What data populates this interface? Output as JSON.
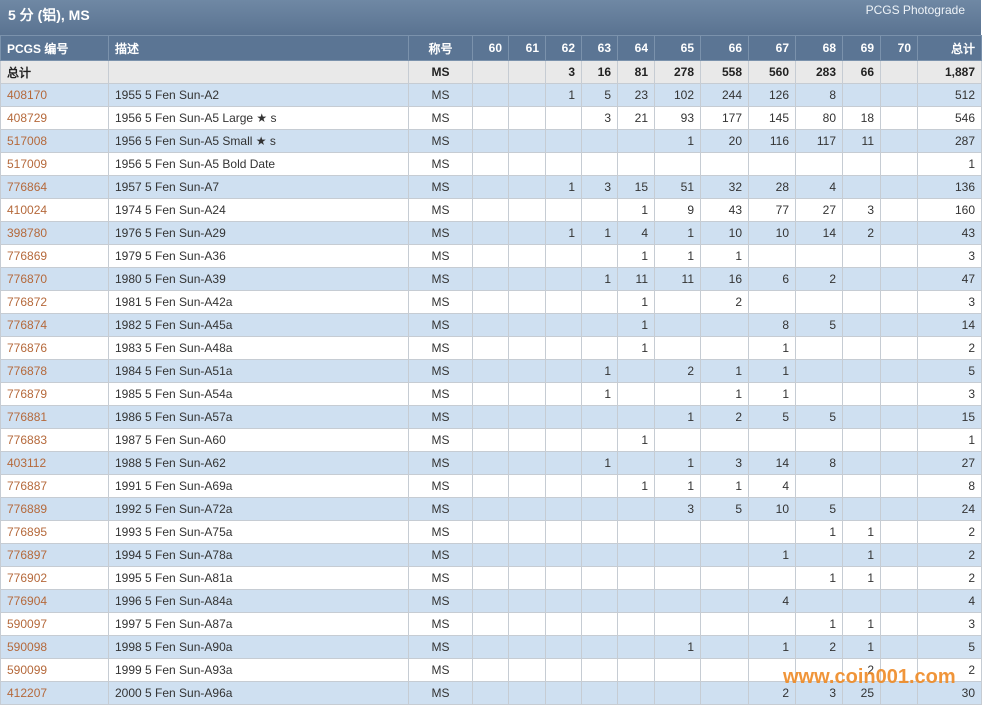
{
  "header": {
    "title": "5 分 (铝), MS",
    "link": "PCGS Photograde"
  },
  "table": {
    "columns": [
      "PCGS 编号",
      "描述",
      "称号",
      "60",
      "61",
      "62",
      "63",
      "64",
      "65",
      "66",
      "67",
      "68",
      "69",
      "70",
      "总计"
    ],
    "total_row": [
      "总计",
      null,
      "MS",
      null,
      null,
      3,
      16,
      81,
      278,
      558,
      560,
      283,
      66,
      null,
      "1,887"
    ],
    "rows": [
      [
        "408170",
        "1955 5 Fen Sun-A2",
        "MS",
        null,
        null,
        1,
        5,
        23,
        102,
        244,
        126,
        8,
        null,
        null,
        512
      ],
      [
        "408729",
        "1956 5 Fen Sun-A5 Large ★ s",
        "MS",
        null,
        null,
        null,
        3,
        21,
        93,
        177,
        145,
        80,
        18,
        null,
        546
      ],
      [
        "517008",
        "1956 5 Fen Sun-A5 Small ★ s",
        "MS",
        null,
        null,
        null,
        null,
        null,
        1,
        20,
        116,
        117,
        11,
        null,
        287
      ],
      [
        "517009",
        "1956 5 Fen Sun-A5 Bold Date",
        "MS",
        null,
        null,
        null,
        null,
        null,
        null,
        null,
        null,
        null,
        null,
        null,
        1
      ],
      [
        "776864",
        "1957 5 Fen Sun-A7",
        "MS",
        null,
        null,
        1,
        3,
        15,
        51,
        32,
        28,
        4,
        null,
        null,
        136
      ],
      [
        "410024",
        "1974 5 Fen Sun-A24",
        "MS",
        null,
        null,
        null,
        null,
        1,
        9,
        43,
        77,
        27,
        3,
        null,
        160
      ],
      [
        "398780",
        "1976 5 Fen Sun-A29",
        "MS",
        null,
        null,
        1,
        1,
        4,
        1,
        10,
        10,
        14,
        2,
        null,
        43
      ],
      [
        "776869",
        "1979 5 Fen Sun-A36",
        "MS",
        null,
        null,
        null,
        null,
        1,
        1,
        1,
        null,
        null,
        null,
        null,
        3
      ],
      [
        "776870",
        "1980 5 Fen Sun-A39",
        "MS",
        null,
        null,
        null,
        1,
        11,
        11,
        16,
        6,
        2,
        null,
        null,
        47
      ],
      [
        "776872",
        "1981 5 Fen Sun-A42a",
        "MS",
        null,
        null,
        null,
        null,
        1,
        null,
        2,
        null,
        null,
        null,
        null,
        3
      ],
      [
        "776874",
        "1982 5 Fen Sun-A45a",
        "MS",
        null,
        null,
        null,
        null,
        1,
        null,
        null,
        8,
        5,
        null,
        null,
        14
      ],
      [
        "776876",
        "1983 5 Fen Sun-A48a",
        "MS",
        null,
        null,
        null,
        null,
        1,
        null,
        null,
        1,
        null,
        null,
        null,
        2
      ],
      [
        "776878",
        "1984 5 Fen Sun-A51a",
        "MS",
        null,
        null,
        null,
        1,
        null,
        2,
        1,
        1,
        null,
        null,
        null,
        5
      ],
      [
        "776879",
        "1985 5 Fen Sun-A54a",
        "MS",
        null,
        null,
        null,
        1,
        null,
        null,
        1,
        1,
        null,
        null,
        null,
        3
      ],
      [
        "776881",
        "1986 5 Fen Sun-A57a",
        "MS",
        null,
        null,
        null,
        null,
        null,
        1,
        2,
        5,
        5,
        null,
        null,
        15
      ],
      [
        "776883",
        "1987 5 Fen Sun-A60",
        "MS",
        null,
        null,
        null,
        null,
        1,
        null,
        null,
        null,
        null,
        null,
        null,
        1
      ],
      [
        "403112",
        "1988 5 Fen Sun-A62",
        "MS",
        null,
        null,
        null,
        1,
        null,
        1,
        3,
        14,
        8,
        null,
        null,
        27
      ],
      [
        "776887",
        "1991 5 Fen Sun-A69a",
        "MS",
        null,
        null,
        null,
        null,
        1,
        1,
        1,
        4,
        null,
        null,
        null,
        8
      ],
      [
        "776889",
        "1992 5 Fen Sun-A72a",
        "MS",
        null,
        null,
        null,
        null,
        null,
        3,
        5,
        10,
        5,
        null,
        null,
        24
      ],
      [
        "776895",
        "1993 5 Fen Sun-A75a",
        "MS",
        null,
        null,
        null,
        null,
        null,
        null,
        null,
        null,
        1,
        1,
        null,
        2
      ],
      [
        "776897",
        "1994 5 Fen Sun-A78a",
        "MS",
        null,
        null,
        null,
        null,
        null,
        null,
        null,
        1,
        null,
        1,
        null,
        2
      ],
      [
        "776902",
        "1995 5 Fen Sun-A81a",
        "MS",
        null,
        null,
        null,
        null,
        null,
        null,
        null,
        null,
        1,
        1,
        null,
        2
      ],
      [
        "776904",
        "1996 5 Fen Sun-A84a",
        "MS",
        null,
        null,
        null,
        null,
        null,
        null,
        null,
        4,
        null,
        null,
        null,
        4
      ],
      [
        "590097",
        "1997 5 Fen Sun-A87a",
        "MS",
        null,
        null,
        null,
        null,
        null,
        null,
        null,
        null,
        1,
        1,
        null,
        3
      ],
      [
        "590098",
        "1998 5 Fen Sun-A90a",
        "MS",
        null,
        null,
        null,
        null,
        null,
        1,
        null,
        1,
        2,
        1,
        null,
        5
      ],
      [
        "590099",
        "1999 5 Fen Sun-A93a",
        "MS",
        null,
        null,
        null,
        null,
        null,
        null,
        null,
        null,
        null,
        2,
        null,
        2
      ],
      [
        "412207",
        "2000 5 Fen Sun-A96a",
        "MS",
        null,
        null,
        null,
        null,
        null,
        null,
        null,
        2,
        3,
        25,
        null,
        30
      ]
    ]
  },
  "watermark": "www.coin001.com"
}
